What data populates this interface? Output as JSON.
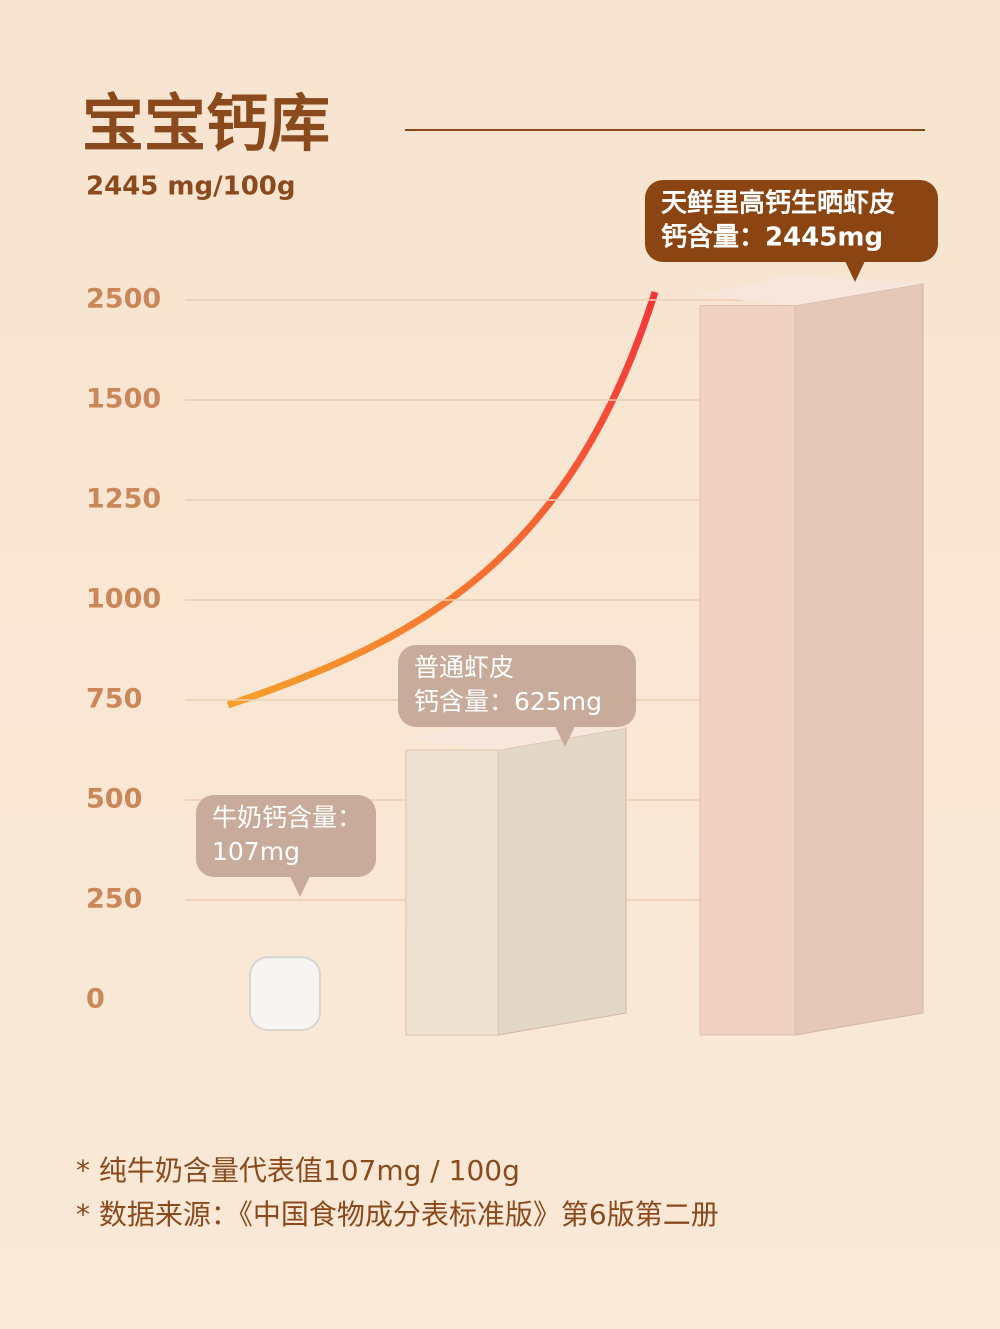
{
  "chart_data": {
    "type": "bar",
    "title": "宝宝钙库",
    "subtitle": "2445 mg/100g",
    "series": [
      {
        "values": [
          107,
          625,
          2445
        ],
        "value_labels": [
          [
            "牛奶钙含量：",
            "107mg"
          ],
          [
            "普通虾皮",
            "钙含量：625mg"
          ],
          [
            "天鲜里高钙生晒虾皮",
            "钙含量：2445mg"
          ]
        ],
        "colors": [
          "#f7f5f2",
          "#efe2d3",
          "#f1d2c1"
        ]
      }
    ],
    "ylim": [
      0,
      2500
    ],
    "yticks": [
      0,
      250,
      500,
      750,
      1000,
      1250,
      1500,
      2500
    ],
    "grid": true,
    "notes": [
      "* 纯牛奶含量代表值107mg / 100g",
      "* 数据来源：《中国食物成分表标准版》第6版第二册"
    ]
  }
}
